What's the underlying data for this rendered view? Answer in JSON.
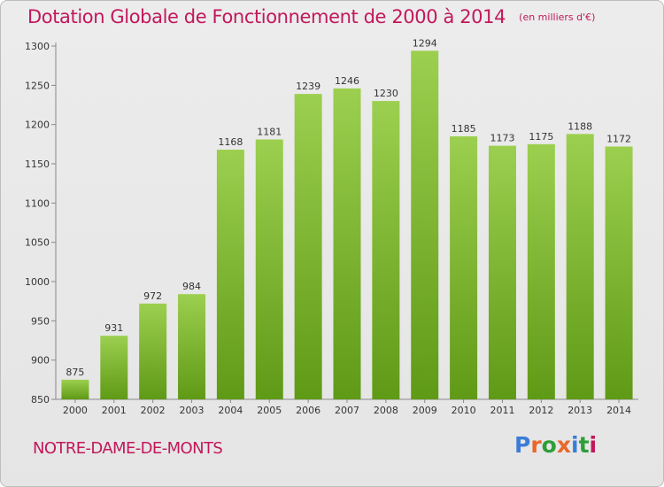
{
  "header": {
    "title": "Dotation Globale de Fonctionnement de 2000 à 2014",
    "subtitle": "(en milliers d'€)"
  },
  "footer": {
    "commune": "NOTRE-DAME-DE-MONTS",
    "logo": {
      "text": "Proxiti",
      "letters": [
        "P",
        "r",
        "o",
        "x",
        "i",
        "t",
        "i"
      ]
    }
  },
  "chart_data": {
    "type": "bar",
    "categories": [
      "2000",
      "2001",
      "2002",
      "2003",
      "2004",
      "2005",
      "2006",
      "2007",
      "2008",
      "2009",
      "2010",
      "2011",
      "2012",
      "2013",
      "2014"
    ],
    "values": [
      875,
      931,
      972,
      984,
      1168,
      1181,
      1239,
      1246,
      1230,
      1294,
      1185,
      1173,
      1175,
      1188,
      1172
    ],
    "ylim": [
      850,
      1300
    ],
    "yticks": [
      850,
      900,
      950,
      1000,
      1050,
      1100,
      1150,
      1200,
      1250,
      1300
    ],
    "data_labels": true,
    "grid": false,
    "legend": "none",
    "colors": {
      "bar_top": "#9ccf4f",
      "bar_bottom": "#5f9a16",
      "title": "#c2185b"
    }
  }
}
